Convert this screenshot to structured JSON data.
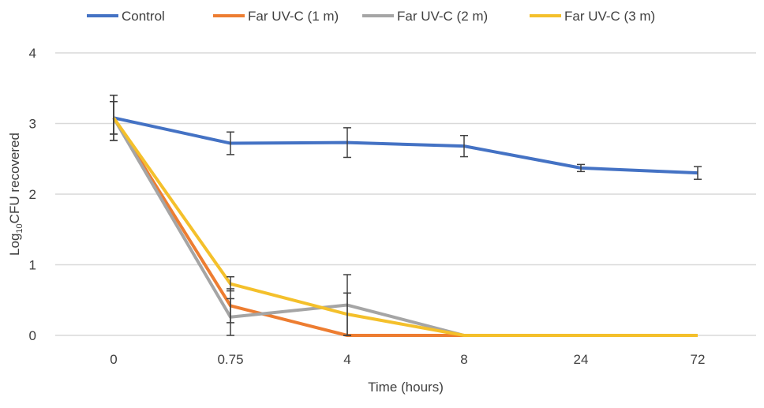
{
  "chart_data": {
    "type": "line",
    "title": "",
    "xlabel": "Time (hours)",
    "ylabel_main": "Log",
    "ylabel_sub": "10",
    "ylabel_rest": "CFU recovered",
    "categories": [
      "0",
      "0.75",
      "4",
      "8",
      "24",
      "72"
    ],
    "ylim": [
      0,
      4
    ],
    "yticks": [
      "0",
      "1",
      "2",
      "3",
      "4"
    ],
    "grid": true,
    "legend_position": "top",
    "series": [
      {
        "name": "Control",
        "color": "#4472C4",
        "values": [
          3.08,
          2.72,
          2.73,
          2.68,
          2.37,
          2.3
        ],
        "errors": [
          0.32,
          0.16,
          0.21,
          0.15,
          0.05,
          0.09
        ]
      },
      {
        "name": "Far UV-C (1 m)",
        "color": "#ED7D31",
        "values": [
          3.08,
          0.42,
          0,
          0,
          0,
          0
        ],
        "errors": [
          0.23,
          0.24,
          0,
          0,
          0,
          0
        ]
      },
      {
        "name": "Far UV-C (2 m)",
        "color": "#A5A5A5",
        "values": [
          3.08,
          0.26,
          0.43,
          0,
          0,
          0
        ],
        "errors": [
          0.32,
          0.26,
          0.43,
          0,
          0,
          0
        ]
      },
      {
        "name": "Far UV-C (3 m)",
        "color": "#F4C02B",
        "values": [
          3.08,
          0.73,
          0.3,
          0,
          0,
          0
        ],
        "errors": [
          0.23,
          0.1,
          0.3,
          0,
          0,
          0
        ]
      }
    ]
  }
}
